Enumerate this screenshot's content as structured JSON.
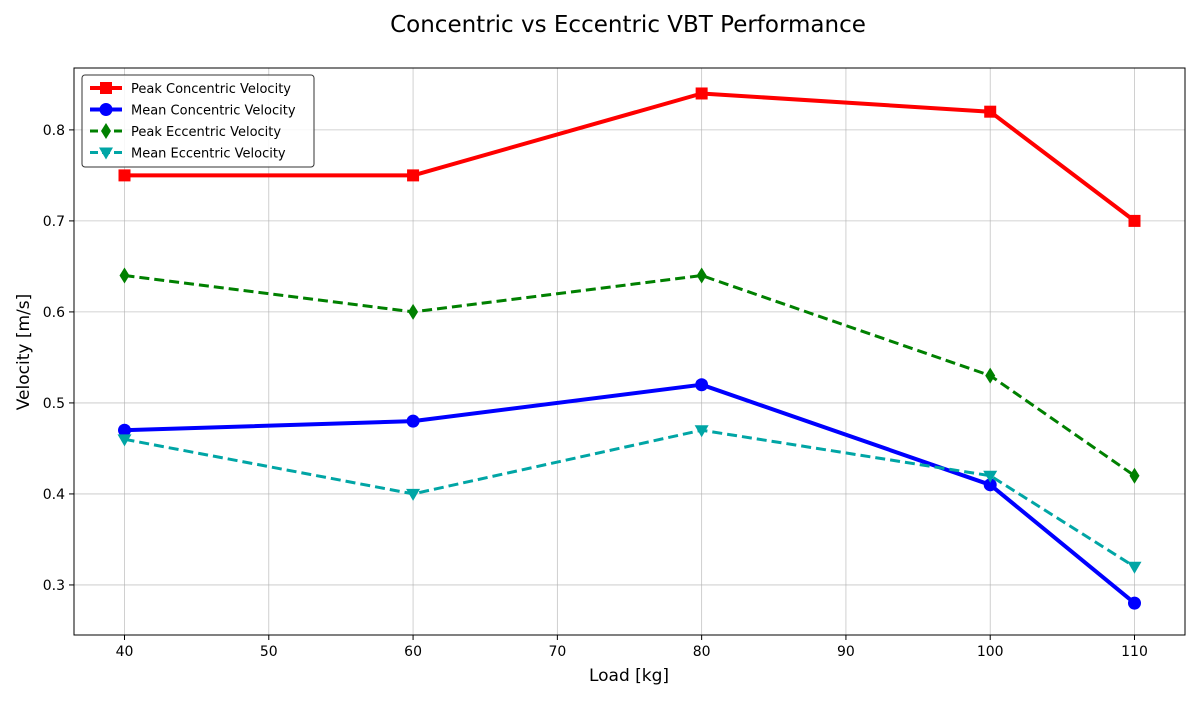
{
  "chart_data": {
    "type": "line",
    "title": "Concentric vs Eccentric VBT Performance",
    "xlabel": "Load [kg]",
    "ylabel": "Velocity [m/s]",
    "x": [
      40,
      60,
      80,
      100,
      110
    ],
    "xlim": [
      36.5,
      113.5
    ],
    "ylim": [
      0.245,
      0.868
    ],
    "xticks": [
      40,
      50,
      60,
      70,
      80,
      90,
      100,
      110
    ],
    "yticks": [
      0.3,
      0.4,
      0.5,
      0.6,
      0.7,
      0.8
    ],
    "xtick_labels": [
      "40",
      "50",
      "60",
      "70",
      "80",
      "90",
      "100",
      "110"
    ],
    "ytick_labels": [
      "0.3",
      "0.4",
      "0.5",
      "0.6",
      "0.7",
      "0.8"
    ],
    "grid": true,
    "legend_position": "top-left",
    "series": [
      {
        "name": "Peak Concentric Velocity",
        "values": [
          0.75,
          0.75,
          0.84,
          0.82,
          0.7
        ],
        "color": "#ff0000",
        "line_style": "solid",
        "marker": "square"
      },
      {
        "name": "Mean Concentric Velocity",
        "values": [
          0.47,
          0.48,
          0.52,
          0.41,
          0.28
        ],
        "color": "#0000ff",
        "line_style": "solid",
        "marker": "circle"
      },
      {
        "name": "Peak Eccentric Velocity",
        "values": [
          0.64,
          0.6,
          0.64,
          0.53,
          0.42
        ],
        "color": "#008000",
        "line_style": "dashed",
        "marker": "diamond"
      },
      {
        "name": "Mean Eccentric Velocity",
        "values": [
          0.46,
          0.4,
          0.47,
          0.42,
          0.32
        ],
        "color": "#00a5a5",
        "line_style": "dashed",
        "marker": "triangle-down"
      }
    ]
  }
}
